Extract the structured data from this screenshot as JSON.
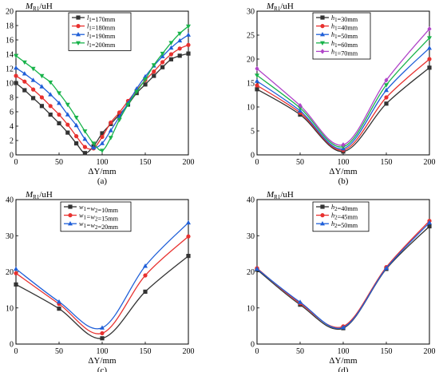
{
  "chart_data": [
    {
      "type": "line",
      "caption": "(a)",
      "ylabel": {
        "main": "M",
        "sub": "R1",
        "unit": "/uH"
      },
      "xlabel": "ΔY/mm",
      "xlim": [
        0,
        200
      ],
      "ylim": [
        0,
        20
      ],
      "xticks": [
        0,
        50,
        100,
        150,
        200
      ],
      "yticks": [
        0,
        2,
        4,
        6,
        8,
        10,
        12,
        14,
        16,
        18,
        20
      ],
      "legend_position": "top-center",
      "grid": false,
      "series": [
        {
          "name": {
            "main": "l",
            "sub": "1",
            "rest": "=170mm"
          },
          "color": "#333333",
          "marker": "square",
          "x": [
            0,
            10,
            20,
            30,
            40,
            50,
            60,
            70,
            80,
            90,
            100,
            110,
            120,
            130,
            140,
            150,
            160,
            170,
            180,
            190,
            200
          ],
          "y": [
            10.0,
            9.0,
            7.9,
            6.8,
            5.6,
            4.4,
            3.1,
            1.6,
            0.25,
            1.2,
            3.0,
            4.3,
            5.6,
            7.0,
            8.6,
            9.8,
            11.0,
            12.2,
            13.3,
            13.8,
            14.1
          ]
        },
        {
          "name": {
            "main": "l",
            "sub": "1",
            "rest": "=180mm"
          },
          "color": "#e8312f",
          "marker": "circle",
          "x": [
            0,
            10,
            20,
            30,
            40,
            50,
            60,
            70,
            80,
            90,
            100,
            110,
            120,
            130,
            140,
            150,
            160,
            170,
            180,
            190,
            200
          ],
          "y": [
            11.0,
            10.2,
            9.1,
            8.0,
            6.8,
            5.6,
            4.2,
            2.6,
            1.1,
            0.9,
            2.5,
            4.5,
            5.9,
            7.5,
            9.0,
            10.4,
            11.6,
            12.9,
            14.0,
            14.8,
            15.3
          ]
        },
        {
          "name": {
            "main": "l",
            "sub": "1",
            "rest": "=190mm"
          },
          "color": "#1f5fd8",
          "marker": "triangle-up",
          "x": [
            0,
            10,
            20,
            30,
            40,
            50,
            60,
            70,
            80,
            90,
            100,
            110,
            120,
            130,
            140,
            150,
            160,
            170,
            180,
            190,
            200
          ],
          "y": [
            12.1,
            11.3,
            10.4,
            9.5,
            8.4,
            7.2,
            5.6,
            4.1,
            2.2,
            1.0,
            1.6,
            3.4,
            5.3,
            7.2,
            9.2,
            10.9,
            12.4,
            13.7,
            14.9,
            15.9,
            16.7
          ]
        },
        {
          "name": {
            "main": "l",
            "sub": "1",
            "rest": "=200mm"
          },
          "color": "#18b34a",
          "marker": "triangle-down",
          "x": [
            0,
            10,
            20,
            30,
            40,
            50,
            60,
            70,
            80,
            90,
            100,
            110,
            120,
            130,
            140,
            150,
            160,
            170,
            180,
            190,
            200
          ],
          "y": [
            13.8,
            12.9,
            12.0,
            11.0,
            10.1,
            8.6,
            7.0,
            5.2,
            3.3,
            1.6,
            0.6,
            2.4,
            4.9,
            7.0,
            8.8,
            10.5,
            12.5,
            14.1,
            15.6,
            16.9,
            17.9
          ]
        }
      ]
    },
    {
      "type": "line",
      "caption": "(b)",
      "ylabel": {
        "main": "M",
        "sub": "R1",
        "unit": "/uH"
      },
      "xlabel": "ΔY/mm",
      "xlim": [
        0,
        200
      ],
      "ylim": [
        0,
        30
      ],
      "xticks": [
        0,
        50,
        100,
        150,
        200
      ],
      "yticks": [
        0,
        5,
        10,
        15,
        20,
        25,
        30
      ],
      "legend_position": "top-center",
      "grid": false,
      "series": [
        {
          "name": {
            "main": "h",
            "sub": "1",
            "rest": "=30mm"
          },
          "color": "#333333",
          "marker": "square",
          "x": [
            0,
            50,
            100,
            150,
            200
          ],
          "y": [
            13.7,
            8.4,
            0.7,
            10.7,
            18.2
          ]
        },
        {
          "name": {
            "main": "h",
            "sub": "1",
            "rest": "=40mm"
          },
          "color": "#e8312f",
          "marker": "circle",
          "x": [
            0,
            50,
            100,
            150,
            200
          ],
          "y": [
            14.5,
            8.8,
            1.0,
            12.0,
            20.0
          ]
        },
        {
          "name": {
            "main": "h",
            "sub": "1",
            "rest": "=50mm"
          },
          "color": "#1f5fd8",
          "marker": "triangle-up",
          "x": [
            0,
            50,
            100,
            150,
            200
          ],
          "y": [
            15.4,
            9.2,
            1.3,
            13.5,
            22.3
          ]
        },
        {
          "name": {
            "main": "h",
            "sub": "1",
            "rest": "=60mm"
          },
          "color": "#18b34a",
          "marker": "triangle-down",
          "x": [
            0,
            50,
            100,
            150,
            200
          ],
          "y": [
            16.6,
            9.8,
            1.7,
            14.6,
            24.4
          ]
        },
        {
          "name": {
            "main": "h",
            "sub": "1",
            "rest": "=70mm"
          },
          "color": "#b044c8",
          "marker": "diamond",
          "x": [
            0,
            50,
            100,
            150,
            200
          ],
          "y": [
            18.0,
            10.3,
            2.1,
            15.6,
            26.3
          ]
        }
      ]
    },
    {
      "type": "line",
      "caption": "(c)",
      "ylabel": {
        "main": "M",
        "sub": "R1",
        "unit": "/uH"
      },
      "xlabel": "ΔY/mm",
      "xlim": [
        0,
        200
      ],
      "ylim": [
        0,
        40
      ],
      "xticks": [
        0,
        50,
        100,
        150,
        200
      ],
      "yticks": [
        0,
        10,
        20,
        30,
        40
      ],
      "legend_position": "top-center",
      "grid": false,
      "series": [
        {
          "name": {
            "parts": [
              [
                "w",
                "1"
              ],
              [
                "=w",
                "2"
              ]
            ],
            "rest": "=10mm"
          },
          "color": "#333333",
          "marker": "square",
          "x": [
            0,
            50,
            100,
            150,
            200
          ],
          "y": [
            16.5,
            9.8,
            1.6,
            14.5,
            24.4
          ]
        },
        {
          "name": {
            "parts": [
              [
                "w",
                "1"
              ],
              [
                "=w",
                "2"
              ]
            ],
            "rest": "=15mm"
          },
          "color": "#e8312f",
          "marker": "circle",
          "x": [
            0,
            50,
            100,
            150,
            200
          ],
          "y": [
            19.6,
            11.1,
            3.0,
            19.0,
            29.8
          ]
        },
        {
          "name": {
            "parts": [
              [
                "w",
                "1"
              ],
              [
                "=w",
                "2"
              ]
            ],
            "rest": "=20mm"
          },
          "color": "#1f5fd8",
          "marker": "triangle-up",
          "x": [
            0,
            50,
            100,
            150,
            200
          ],
          "y": [
            20.8,
            11.7,
            4.5,
            21.6,
            33.6
          ]
        }
      ]
    },
    {
      "type": "line",
      "caption": "(d)",
      "ylabel": {
        "main": "M",
        "sub": "R1",
        "unit": "/uH"
      },
      "xlabel": "ΔY/mm",
      "xlim": [
        0,
        200
      ],
      "ylim": [
        0,
        40
      ],
      "xticks": [
        0,
        50,
        100,
        150,
        200
      ],
      "yticks": [
        0,
        10,
        20,
        30,
        40
      ],
      "legend_position": "top-center",
      "grid": false,
      "series": [
        {
          "name": {
            "main": "h",
            "sub": "2",
            "rest": "=40mm"
          },
          "color": "#333333",
          "marker": "square",
          "x": [
            0,
            50,
            100,
            150,
            200
          ],
          "y": [
            20.6,
            10.9,
            4.4,
            20.8,
            32.6
          ]
        },
        {
          "name": {
            "main": "h",
            "sub": "2",
            "rest": "=45mm"
          },
          "color": "#e8312f",
          "marker": "circle",
          "x": [
            0,
            50,
            100,
            150,
            200
          ],
          "y": [
            21.0,
            11.3,
            4.9,
            21.3,
            34.1
          ]
        },
        {
          "name": {
            "main": "h",
            "sub": "2",
            "rest": "=50mm"
          },
          "color": "#1f5fd8",
          "marker": "triangle-up",
          "x": [
            0,
            50,
            100,
            150,
            200
          ],
          "y": [
            20.8,
            11.6,
            4.6,
            21.0,
            33.6
          ]
        }
      ]
    }
  ]
}
